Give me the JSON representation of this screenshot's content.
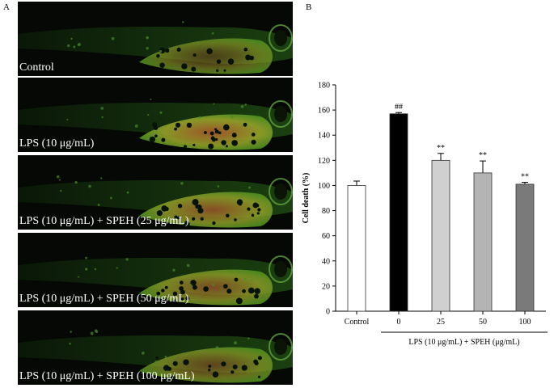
{
  "panel_a_label": "A",
  "panel_b_label": "B",
  "panels": [
    {
      "caption": "Control",
      "intensity": 0.35
    },
    {
      "caption": "LPS (10 μg/mL)",
      "intensity": 0.95
    },
    {
      "caption": "LPS (10 μg/mL) + SPEH (25 μg/mL)",
      "intensity": 0.8
    },
    {
      "caption": "LPS (10 μg/mL) + SPEH (50 μg/mL)",
      "intensity": 0.7
    },
    {
      "caption": "LPS (10 μg/mL) + SPEH (100 μg/mL)",
      "intensity": 0.5
    }
  ],
  "colors": {
    "fish_green": "#3f8f1e",
    "fish_yellow": "#9aa52a",
    "yolk_red": "#a3542a",
    "bar_outline": "#333333"
  },
  "chart_data": {
    "type": "bar",
    "categories": [
      "Control",
      "0",
      "25",
      "50",
      "100"
    ],
    "values": [
      100,
      157,
      120,
      110,
      101
    ],
    "errors": [
      3.5,
      1,
      5.5,
      9.5,
      1.5
    ],
    "annotations": [
      "",
      "##",
      "**",
      "**",
      "**"
    ],
    "bar_colors": [
      "#ffffff",
      "#000000",
      "#d0d0d0",
      "#b4b4b4",
      "#7a7a7a"
    ],
    "ylabel": "Cell death (%)",
    "xlabel": "",
    "group_label": "LPS (10 μg/mL) + SPEH (μg/mL)",
    "ylim": [
      0,
      180
    ],
    "yticks": [
      0,
      20,
      40,
      60,
      80,
      100,
      120,
      140,
      160,
      180
    ],
    "grid": false
  }
}
